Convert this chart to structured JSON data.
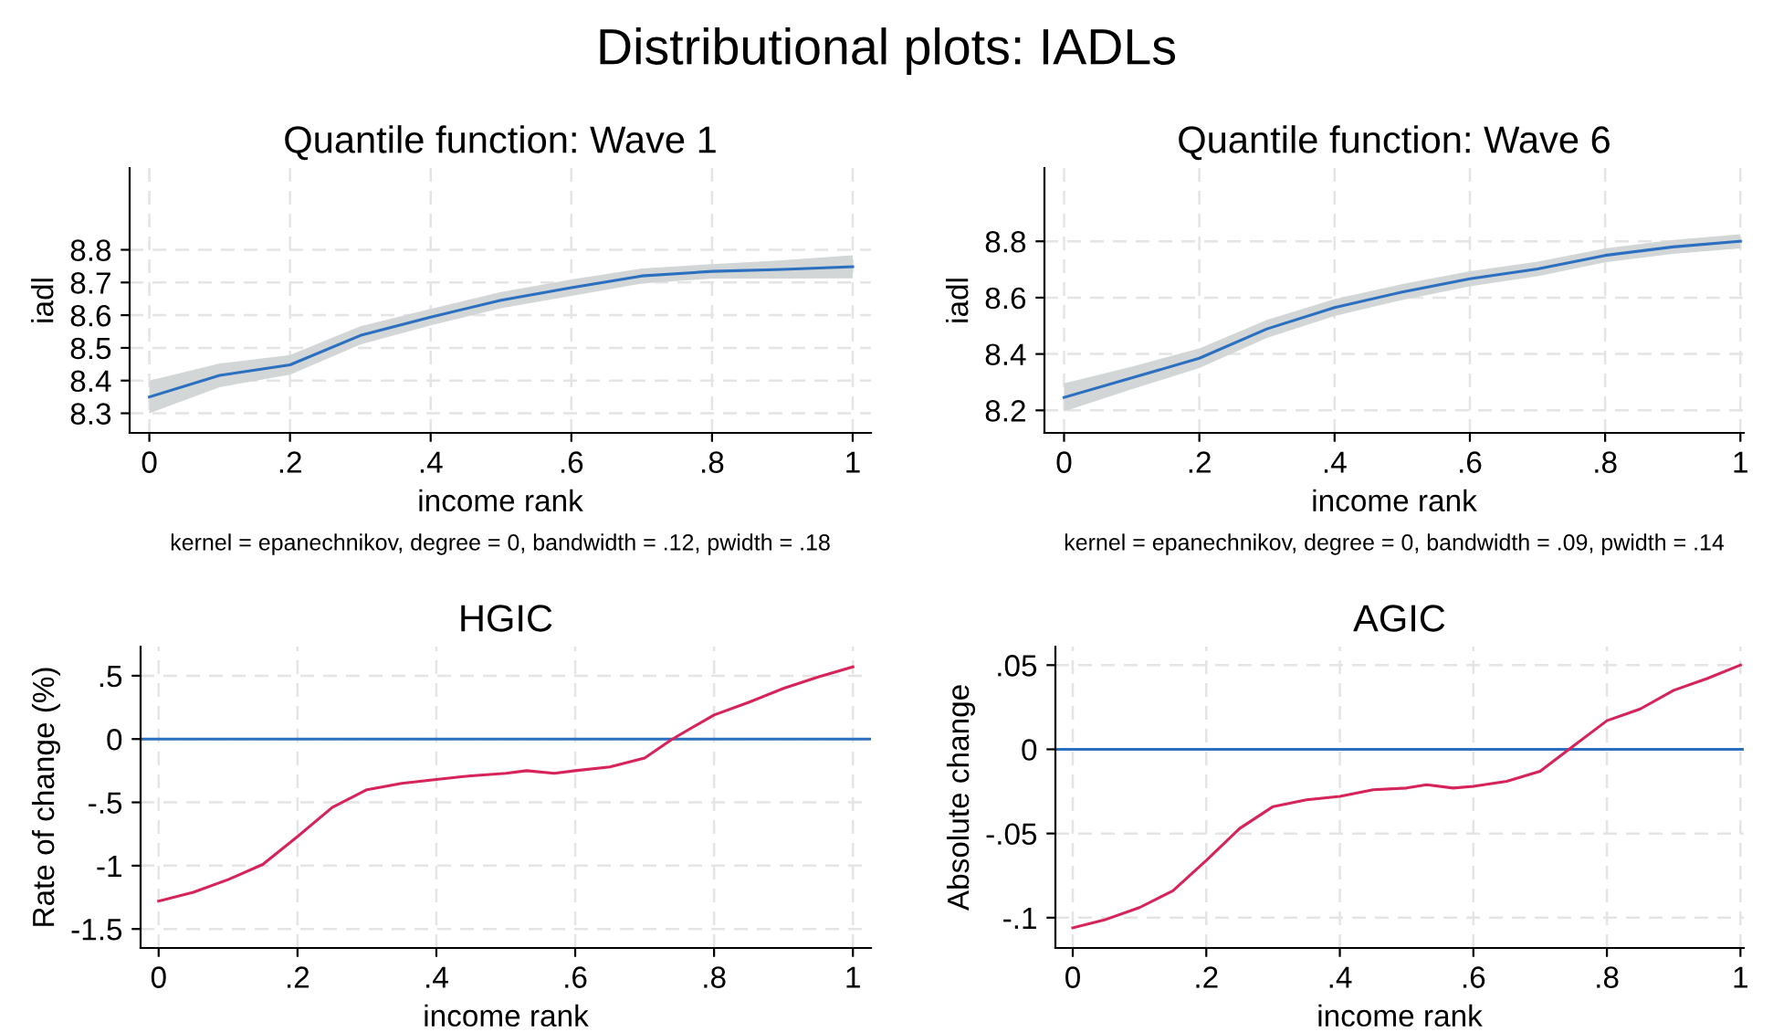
{
  "chart_data": [
    {
      "type": "line",
      "title": "Quantile function: Wave 1",
      "xlabel": "income rank",
      "ylabel": "iadl",
      "grid": true,
      "legend": false,
      "annotations": [
        "Distributional plots: IADLs",
        "kernel = epanechnikov, degree = 0, bandwidth = .12, pwidth = .18"
      ],
      "xlim": [
        -0.028,
        1.026
      ],
      "ylim": [
        8.24,
        9.05
      ],
      "xticks": [
        0,
        {
          "value": 0.2,
          "label": ".2"
        },
        {
          "value": 0.4,
          "label": ".4"
        },
        {
          "value": 0.6,
          "label": ".6"
        },
        {
          "value": 0.8,
          "label": ".8"
        },
        1
      ],
      "yticks": [
        8.3,
        8.4,
        8.5,
        8.6,
        8.7,
        8.8
      ],
      "x": [
        0,
        0.1,
        0.2,
        0.3,
        0.4,
        0.5,
        0.6,
        0.7,
        0.8,
        0.9,
        1
      ],
      "series": [
        {
          "color": "#2a6fc0",
          "values": [
            8.35,
            8.416,
            8.448,
            8.538,
            8.594,
            8.646,
            8.684,
            8.72,
            8.734,
            8.74,
            8.748
          ],
          "lower": [
            8.3,
            8.38,
            8.418,
            8.51,
            8.569,
            8.621,
            8.659,
            8.697,
            8.712,
            8.712,
            8.713
          ],
          "upper": [
            8.4,
            8.452,
            8.478,
            8.566,
            8.619,
            8.671,
            8.709,
            8.743,
            8.756,
            8.768,
            8.783
          ]
        }
      ]
    },
    {
      "type": "line",
      "title": "Quantile function: Wave 6",
      "xlabel": "income rank",
      "ylabel": "iadl",
      "grid": true,
      "legend": false,
      "annotations": [
        "kernel = epanechnikov, degree = 0, bandwidth = .09, pwidth = .14"
      ],
      "xlim": [
        -0.029,
        1.005
      ],
      "ylim": [
        8.12,
        9.06
      ],
      "xticks": [
        0,
        {
          "value": 0.2,
          "label": ".2"
        },
        {
          "value": 0.4,
          "label": ".4"
        },
        {
          "value": 0.6,
          "label": ".6"
        },
        {
          "value": 0.8,
          "label": ".8"
        },
        1
      ],
      "yticks": [
        8.2,
        8.4,
        8.6,
        8.8
      ],
      "x": [
        0,
        0.1,
        0.2,
        0.3,
        0.4,
        0.5,
        0.6,
        0.7,
        0.8,
        0.9,
        1
      ],
      "series": [
        {
          "color": "#2a6fc0",
          "values": [
            8.246,
            8.315,
            8.385,
            8.489,
            8.565,
            8.62,
            8.667,
            8.702,
            8.75,
            8.78,
            8.8
          ],
          "lower": [
            8.196,
            8.275,
            8.35,
            8.457,
            8.535,
            8.592,
            8.64,
            8.676,
            8.725,
            8.755,
            8.775
          ],
          "upper": [
            8.296,
            8.355,
            8.42,
            8.521,
            8.595,
            8.648,
            8.694,
            8.728,
            8.775,
            8.805,
            8.825
          ]
        }
      ]
    },
    {
      "type": "line",
      "title": "HGIC",
      "xlabel": "income rank",
      "ylabel": "Rate of change (%)",
      "grid": true,
      "legend": false,
      "xlim": [
        -0.026,
        1.026
      ],
      "ylim": [
        -1.65,
        0.73
      ],
      "xticks": [
        0,
        {
          "value": 0.2,
          "label": ".2"
        },
        {
          "value": 0.4,
          "label": ".4"
        },
        {
          "value": 0.6,
          "label": ".6"
        },
        {
          "value": 0.8,
          "label": ".8"
        },
        1
      ],
      "yticks": [
        -1.5,
        -1,
        {
          "value": -0.5,
          "label": "-.5"
        },
        0,
        {
          "value": 0.5,
          "label": ".5"
        }
      ],
      "x": [
        0,
        0.05,
        0.1,
        0.15,
        0.2,
        0.25,
        0.3,
        0.35,
        0.4,
        0.45,
        0.5,
        0.53,
        0.57,
        0.6,
        0.65,
        0.7,
        0.74,
        0.8,
        0.85,
        0.9,
        0.95,
        1
      ],
      "ref_lines": [
        {
          "axis": "y",
          "value": 0,
          "color": "#2a6fc0"
        }
      ],
      "series": [
        {
          "color": "#d6245a",
          "values": [
            -1.28,
            -1.21,
            -1.11,
            -0.99,
            -0.77,
            -0.54,
            -0.4,
            -0.35,
            -0.32,
            -0.29,
            -0.27,
            -0.25,
            -0.27,
            -0.25,
            -0.22,
            -0.15,
            0.0,
            0.19,
            0.29,
            0.4,
            0.49,
            0.57
          ]
        }
      ]
    },
    {
      "type": "line",
      "title": "AGIC",
      "xlabel": "income rank",
      "ylabel": "Absolute change",
      "grid": true,
      "legend": false,
      "xlim": [
        -0.026,
        1.005
      ],
      "ylim": [
        -0.118,
        0.061
      ],
      "xticks": [
        0,
        {
          "value": 0.2,
          "label": ".2"
        },
        {
          "value": 0.4,
          "label": ".4"
        },
        {
          "value": 0.6,
          "label": ".6"
        },
        {
          "value": 0.8,
          "label": ".8"
        },
        1
      ],
      "yticks": [
        {
          "value": -0.1,
          "label": "-.1"
        },
        {
          "value": -0.05,
          "label": "-.05"
        },
        0,
        {
          "value": 0.05,
          "label": ".05"
        }
      ],
      "x": [
        0,
        0.05,
        0.1,
        0.15,
        0.2,
        0.25,
        0.3,
        0.35,
        0.4,
        0.45,
        0.5,
        0.53,
        0.57,
        0.6,
        0.65,
        0.7,
        0.74,
        0.8,
        0.85,
        0.9,
        0.95,
        1
      ],
      "ref_lines": [
        {
          "axis": "y",
          "value": 0,
          "color": "#2a6fc0"
        }
      ],
      "series": [
        {
          "color": "#d6245a",
          "values": [
            -0.106,
            -0.101,
            -0.094,
            -0.084,
            -0.066,
            -0.047,
            -0.034,
            -0.03,
            -0.028,
            -0.024,
            -0.023,
            -0.021,
            -0.023,
            -0.022,
            -0.019,
            -0.013,
            -0.001,
            0.017,
            0.024,
            0.035,
            0.042,
            0.05
          ]
        }
      ]
    }
  ]
}
